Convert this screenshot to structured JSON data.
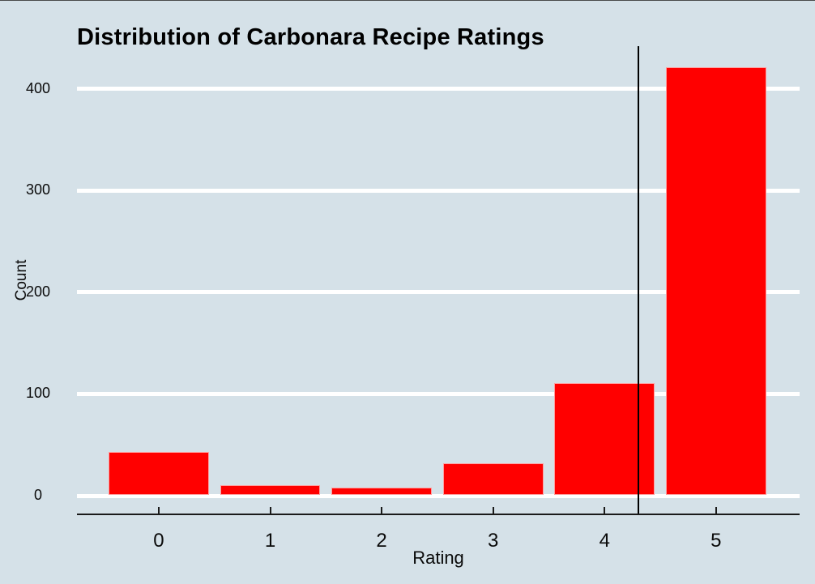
{
  "chart_data": {
    "type": "bar",
    "title": "Distribution of Carbonara Recipe Ratings",
    "xlabel": "Rating",
    "ylabel": "Count",
    "categories": [
      0,
      1,
      2,
      3,
      4,
      5
    ],
    "values": [
      42,
      10,
      7,
      31,
      110,
      420
    ],
    "x_tick_labels": [
      "0",
      "1",
      "2",
      "3",
      "4",
      "5"
    ],
    "y_tick_labels": [
      "0",
      "100",
      "200",
      "300",
      "400"
    ],
    "y_ticks": [
      0,
      100,
      200,
      300,
      400
    ],
    "mean_line_x": 4.3,
    "bar_width": 0.9,
    "xlim": [
      -0.734,
      5.75
    ],
    "ylim": [
      -19,
      441
    ],
    "grid": "horizontal-white-lines",
    "legend": "none",
    "colors": {
      "background": "#d5e1e8",
      "bar_fill": "#ff0000",
      "bar_edge": "#ff9e9e",
      "gridline": "#ffffff",
      "axis": "#1a1a1a",
      "mean_line": "#000000",
      "text": "#000000",
      "top_border": "#4a4a4a"
    }
  }
}
